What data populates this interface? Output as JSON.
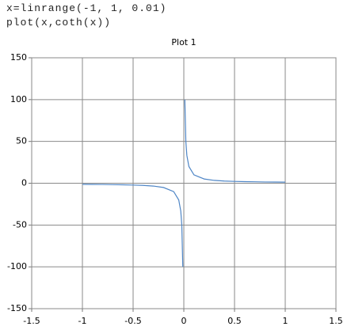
{
  "code": [
    "x=linrange(-1, 1, 0.01)",
    "plot(x,coth(x))"
  ],
  "chart_data": {
    "type": "line",
    "title": "Plot 1",
    "x": [
      -1,
      -0.9,
      -0.8,
      -0.7,
      -0.6,
      -0.5,
      -0.4,
      -0.3,
      -0.2,
      -0.1,
      -0.05,
      -0.03,
      -0.02,
      -0.01,
      0,
      0.01,
      0.02,
      0.03,
      0.05,
      0.1,
      0.2,
      0.3,
      0.4,
      0.5,
      0.6,
      0.7,
      0.8,
      0.9,
      1
    ],
    "series": [
      {
        "color": "#4f86c6",
        "values": [
          -1.3,
          -1.4,
          -1.5,
          -1.7,
          -1.9,
          -2.2,
          -2.6,
          -3.4,
          -5.1,
          -10,
          -20,
          -33.3,
          -50,
          -100,
          null,
          100,
          50,
          33.3,
          20,
          10,
          5.1,
          3.4,
          2.6,
          2.2,
          1.9,
          1.7,
          1.5,
          1.4,
          1.3
        ]
      }
    ],
    "xlim": [
      -1.5,
      1.5
    ],
    "xticks": [
      -1.5,
      -1,
      -0.5,
      0,
      0.5,
      1,
      1.5
    ],
    "ylim": [
      -150,
      150
    ],
    "yticks": [
      -150,
      -100,
      -50,
      0,
      50,
      100,
      150
    ],
    "grid": true
  }
}
